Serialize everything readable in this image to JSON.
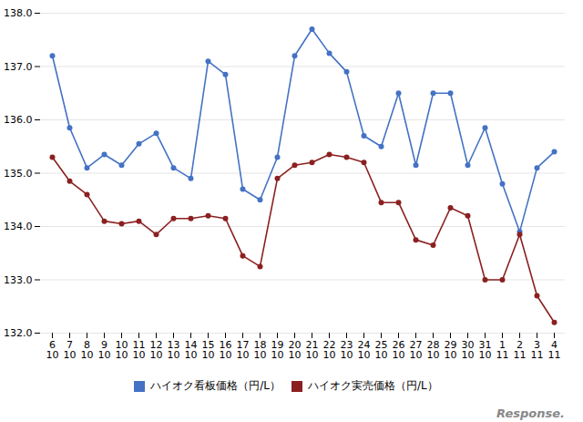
{
  "chart_data": {
    "type": "line",
    "categories": [
      "6\n10",
      "7\n10",
      "8\n10",
      "9\n10",
      "10\n10",
      "11\n10",
      "12\n10",
      "13\n10",
      "14\n10",
      "15\n10",
      "16\n10",
      "17\n10",
      "18\n10",
      "19\n10",
      "20\n10",
      "21\n10",
      "22\n10",
      "23\n10",
      "24\n10",
      "25\n10",
      "26\n10",
      "27\n10",
      "28\n10",
      "29\n10",
      "30\n10",
      "31\n10",
      "1\n11",
      "2\n11",
      "3\n11",
      "4\n11"
    ],
    "series": [
      {
        "name": "ハイオク看板価格（円/L）",
        "color": "#4472C4",
        "marker": "circle",
        "values": [
          137.2,
          135.85,
          135.1,
          135.35,
          135.15,
          135.55,
          135.75,
          135.1,
          134.9,
          137.1,
          136.85,
          134.7,
          134.5,
          135.3,
          137.2,
          137.7,
          137.25,
          136.9,
          135.7,
          135.5,
          136.5,
          135.15,
          136.5,
          136.5,
          135.15,
          135.85,
          134.8,
          133.9,
          135.1,
          135.4
        ]
      },
      {
        "name": "ハイオク実売価格（円/L）",
        "color": "#8B2020",
        "marker": "circle",
        "values": [
          135.3,
          134.85,
          134.6,
          134.1,
          134.05,
          134.1,
          133.85,
          134.15,
          134.15,
          134.2,
          134.15,
          133.45,
          133.25,
          134.9,
          135.15,
          135.2,
          135.35,
          135.3,
          135.2,
          134.45,
          134.45,
          133.75,
          133.65,
          134.35,
          134.2,
          133.0,
          133.0,
          133.85,
          132.7,
          132.2
        ]
      }
    ],
    "ylim": [
      132,
      138
    ],
    "yticks": [
      132,
      133,
      134,
      135,
      136,
      137,
      138
    ],
    "grid": true,
    "legend": "bottom",
    "annotations": [
      "Response."
    ]
  }
}
